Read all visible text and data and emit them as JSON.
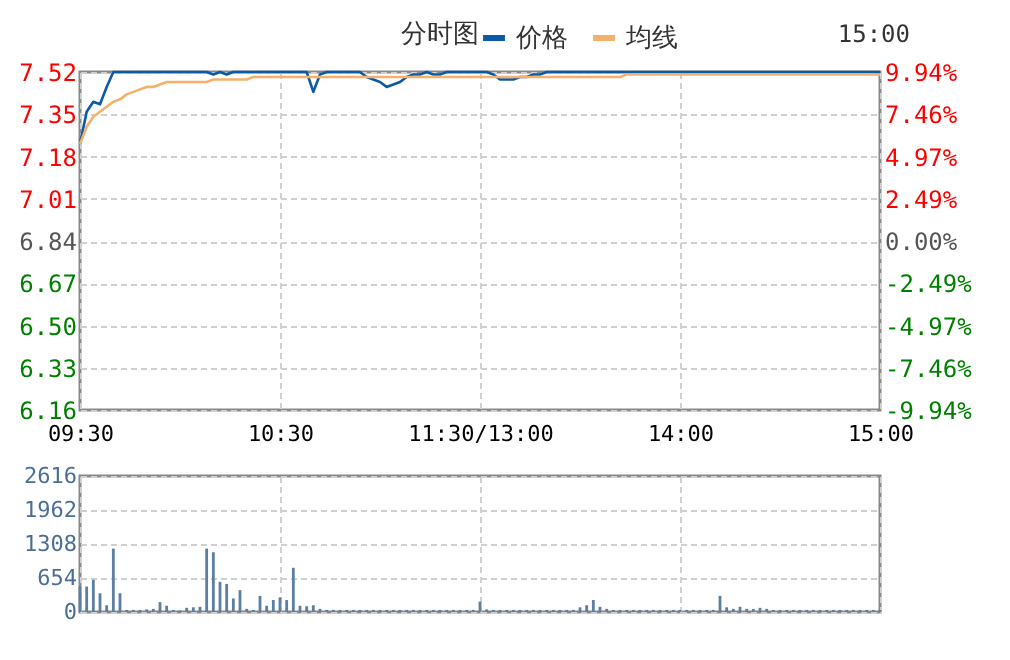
{
  "chart_data": [
    {
      "type": "line",
      "title": "分时图",
      "annotations": [
        "15:00"
      ],
      "legend": "top",
      "grid": true,
      "categories": [
        "09:30",
        null,
        null,
        null,
        null,
        null,
        null,
        null,
        null,
        null,
        null,
        null,
        null,
        null,
        null,
        null,
        null,
        null,
        null,
        null,
        null,
        null,
        null,
        null,
        null,
        null,
        null,
        null,
        null,
        null,
        "10:30",
        null,
        null,
        null,
        null,
        null,
        null,
        null,
        null,
        null,
        null,
        null,
        null,
        null,
        null,
        null,
        null,
        null,
        null,
        null,
        null,
        null,
        null,
        null,
        null,
        null,
        null,
        null,
        null,
        null,
        "11:30/13:00",
        null,
        null,
        null,
        null,
        null,
        null,
        null,
        null,
        null,
        null,
        null,
        null,
        null,
        null,
        null,
        null,
        null,
        null,
        null,
        null,
        null,
        null,
        null,
        null,
        null,
        null,
        null,
        null,
        null,
        "14:00",
        null,
        null,
        null,
        null,
        null,
        null,
        null,
        null,
        null,
        null,
        null,
        null,
        null,
        null,
        null,
        null,
        null,
        null,
        null,
        null,
        null,
        null,
        null,
        null,
        null,
        null,
        null,
        null,
        null,
        "15:00"
      ],
      "ylim": [
        6.16,
        7.52
      ],
      "yticks": [
        6.16,
        6.33,
        {
          "value": 6.5,
          "label": "6.50"
        },
        6.67,
        6.84,
        7.01,
        7.18,
        7.35,
        7.52
      ],
      "y2lim": [
        -9.94,
        9.94
      ],
      "y2ticks": [
        {
          "value": -9.94,
          "label": "-9.94%"
        },
        {
          "value": -7.46,
          "label": "-7.46%"
        },
        {
          "value": -4.97,
          "label": "-4.97%"
        },
        {
          "value": -2.49,
          "label": "-2.49%"
        },
        {
          "value": 0,
          "label": "0.00%"
        },
        {
          "value": 2.49,
          "label": "2.49%"
        },
        {
          "value": 4.97,
          "label": "4.97%"
        },
        {
          "value": 7.46,
          "label": "7.46%"
        },
        {
          "value": 9.94,
          "label": "9.94%"
        }
      ],
      "series": [
        {
          "name": "价格",
          "color": "#0b5aa8",
          "values": [
            7.23,
            7.36,
            7.4,
            7.39,
            7.46,
            7.52,
            7.52,
            7.52,
            7.52,
            7.52,
            7.52,
            7.52,
            7.52,
            7.52,
            7.52,
            7.52,
            7.52,
            7.52,
            7.52,
            7.52,
            7.51,
            7.52,
            7.51,
            7.52,
            7.52,
            7.52,
            7.52,
            7.52,
            7.52,
            7.52,
            7.52,
            7.52,
            7.52,
            7.52,
            7.52,
            7.44,
            7.51,
            7.52,
            7.52,
            7.52,
            7.52,
            7.52,
            7.52,
            7.5,
            7.49,
            7.48,
            7.46,
            7.47,
            7.48,
            7.5,
            7.51,
            7.51,
            7.52,
            7.51,
            7.51,
            7.52,
            7.52,
            7.52,
            7.52,
            7.52,
            7.52,
            7.52,
            7.51,
            7.49,
            7.49,
            7.49,
            7.5,
            7.5,
            7.51,
            7.51,
            7.52,
            7.52,
            7.52,
            7.52,
            7.52,
            7.52,
            7.52,
            7.52,
            7.52,
            7.52,
            7.52,
            7.52,
            7.52,
            7.52,
            7.52,
            7.52,
            7.52,
            7.52,
            7.52,
            7.52,
            7.52,
            7.52,
            7.52,
            7.52,
            7.52,
            7.52,
            7.52,
            7.52,
            7.52,
            7.52,
            7.52,
            7.52,
            7.52,
            7.52,
            7.52,
            7.52,
            7.52,
            7.52,
            7.52,
            7.52,
            7.52,
            7.52,
            7.52,
            7.52,
            7.52,
            7.52,
            7.52,
            7.52,
            7.52,
            7.52,
            7.52
          ]
        },
        {
          "name": "均线",
          "color": "#f5b16b",
          "values": [
            7.23,
            7.3,
            7.34,
            7.36,
            7.38,
            7.4,
            7.41,
            7.43,
            7.44,
            7.45,
            7.46,
            7.46,
            7.47,
            7.48,
            7.48,
            7.48,
            7.48,
            7.48,
            7.48,
            7.48,
            7.49,
            7.49,
            7.49,
            7.49,
            7.49,
            7.49,
            7.5,
            7.5,
            7.5,
            7.5,
            7.5,
            7.5,
            7.5,
            7.5,
            7.5,
            7.5,
            7.5,
            7.5,
            7.5,
            7.5,
            7.5,
            7.5,
            7.5,
            7.5,
            7.5,
            7.5,
            7.5,
            7.5,
            7.5,
            7.5,
            7.5,
            7.5,
            7.5,
            7.5,
            7.5,
            7.5,
            7.5,
            7.5,
            7.5,
            7.5,
            7.5,
            7.5,
            7.5,
            7.5,
            7.5,
            7.5,
            7.5,
            7.5,
            7.5,
            7.5,
            7.5,
            7.5,
            7.5,
            7.5,
            7.5,
            7.5,
            7.5,
            7.5,
            7.5,
            7.5,
            7.5,
            7.5,
            7.51,
            7.51,
            7.51,
            7.51,
            7.51,
            7.51,
            7.51,
            7.51,
            7.51,
            7.51,
            7.51,
            7.51,
            7.51,
            7.51,
            7.51,
            7.51,
            7.51,
            7.51,
            7.51,
            7.51,
            7.51,
            7.51,
            7.51,
            7.51,
            7.51,
            7.51,
            7.51,
            7.51,
            7.51,
            7.51,
            7.51,
            7.51,
            7.51,
            7.51,
            7.51,
            7.51,
            7.51,
            7.51,
            7.51
          ]
        }
      ]
    },
    {
      "type": "bar",
      "grid": true,
      "tick_labels": "y",
      "color": "#5a7fa3",
      "categories": [
        null,
        null,
        null,
        null,
        null,
        null,
        null,
        null,
        null,
        null,
        null,
        null,
        null,
        null,
        null,
        null,
        null,
        null,
        null,
        null,
        null,
        null,
        null,
        null,
        null,
        null,
        null,
        null,
        null,
        null,
        null,
        null,
        null,
        null,
        null,
        null,
        null,
        null,
        null,
        null,
        null,
        null,
        null,
        null,
        null,
        null,
        null,
        null,
        null,
        null,
        null,
        null,
        null,
        null,
        null,
        null,
        null,
        null,
        null,
        null,
        null,
        null,
        null,
        null,
        null,
        null,
        null,
        null,
        null,
        null,
        null,
        null,
        null,
        null,
        null,
        null,
        null,
        null,
        null,
        null,
        null,
        null,
        null,
        null,
        null,
        null,
        null,
        null,
        null,
        null,
        null,
        null,
        null,
        null,
        null,
        null,
        null,
        null,
        null,
        null,
        null,
        null,
        null,
        null,
        null,
        null,
        null,
        null,
        null,
        null,
        null,
        null,
        null,
        null,
        null,
        null,
        null,
        null,
        null,
        null,
        null
      ],
      "ylim": [
        0,
        2616
      ],
      "yticks": [
        0,
        654,
        1308,
        1962,
        2616
      ],
      "values": [
        490,
        490,
        620,
        360,
        130,
        1220,
        360,
        40,
        40,
        40,
        50,
        60,
        190,
        120,
        40,
        30,
        80,
        90,
        100,
        1220,
        1150,
        580,
        540,
        260,
        420,
        60,
        40,
        310,
        120,
        230,
        280,
        230,
        850,
        120,
        110,
        130,
        60,
        40,
        40,
        40,
        40,
        40,
        40,
        40,
        40,
        40,
        40,
        40,
        40,
        40,
        40,
        40,
        40,
        40,
        40,
        40,
        40,
        40,
        40,
        40,
        200,
        50,
        40,
        40,
        40,
        40,
        40,
        40,
        40,
        40,
        40,
        40,
        40,
        40,
        40,
        90,
        130,
        230,
        100,
        60,
        40,
        40,
        40,
        40,
        40,
        40,
        40,
        40,
        40,
        40,
        40,
        40,
        40,
        40,
        40,
        40,
        310,
        90,
        60,
        100,
        60,
        60,
        80,
        60,
        40,
        40,
        40,
        40,
        40,
        40,
        40,
        40,
        40,
        40,
        40,
        40,
        40,
        40,
        40,
        40,
        40
      ]
    }
  ]
}
